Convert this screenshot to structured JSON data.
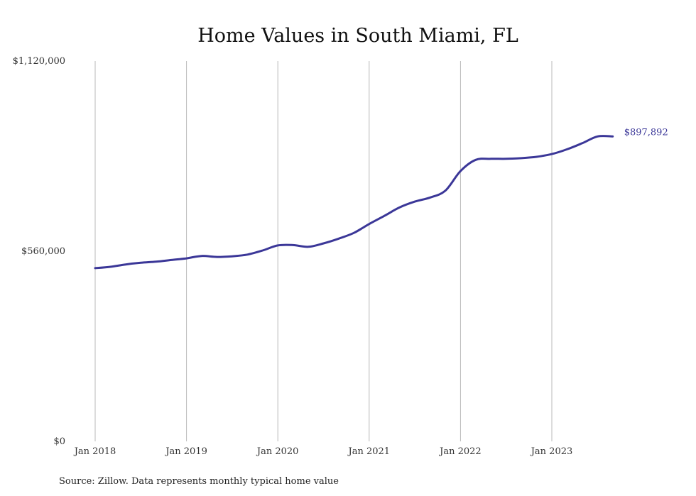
{
  "chart_data": {
    "type": "line",
    "title": "Home Values in South Miami, FL",
    "xlabel": "",
    "ylabel": "",
    "ylim": [
      0,
      1120000
    ],
    "y_ticks": [
      {
        "value": 0,
        "label": "$0"
      },
      {
        "value": 560000,
        "label": "$560,000"
      },
      {
        "value": 1120000,
        "label": "$1,120,000"
      }
    ],
    "x_ticks": [
      {
        "date": "2018-01",
        "label": "Jan 2018"
      },
      {
        "date": "2019-01",
        "label": "Jan 2019"
      },
      {
        "date": "2020-01",
        "label": "Jan 2020"
      },
      {
        "date": "2021-01",
        "label": "Jan 2021"
      },
      {
        "date": "2022-01",
        "label": "Jan 2022"
      },
      {
        "date": "2023-01",
        "label": "Jan 2023"
      }
    ],
    "grid": "vertical",
    "legend": "none",
    "color": "#3b3798",
    "series": [
      {
        "x": [
          "2018-01",
          "2018-03",
          "2018-05",
          "2018-07",
          "2018-09",
          "2018-11",
          "2019-01",
          "2019-03",
          "2019-05",
          "2019-07",
          "2019-09",
          "2019-11",
          "2020-01",
          "2020-03",
          "2020-05",
          "2020-07",
          "2020-09",
          "2020-11",
          "2021-01",
          "2021-03",
          "2021-05",
          "2021-07",
          "2021-09",
          "2021-11",
          "2022-01",
          "2022-03",
          "2022-05",
          "2022-07",
          "2022-09",
          "2022-11",
          "2023-01",
          "2023-03",
          "2023-05",
          "2023-07",
          "2023-09"
        ],
        "values": [
          510000,
          514000,
          521000,
          526000,
          529000,
          534000,
          539000,
          546000,
          543000,
          545000,
          550000,
          562000,
          577000,
          578000,
          573000,
          583000,
          597000,
          614000,
          640000,
          664000,
          689000,
          706000,
          718000,
          738000,
          796000,
          829000,
          832000,
          832000,
          834000,
          838000,
          846000,
          860000,
          878000,
          897892,
          897892
        ]
      }
    ],
    "end_label": "$897,892",
    "source": "Source: Zillow. Data represents monthly typical home value"
  }
}
